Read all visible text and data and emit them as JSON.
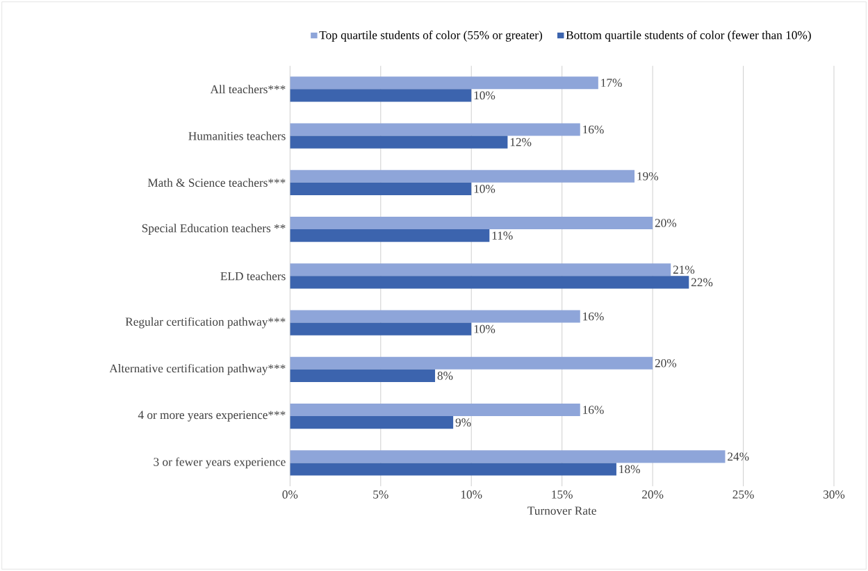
{
  "chart_data": {
    "type": "bar",
    "orientation": "horizontal",
    "categories": [
      "All teachers***",
      "Humanities teachers",
      "Math & Science teachers***",
      "Special Education teachers **",
      "ELD teachers",
      "Regular certification pathway***",
      "Alternative certification pathway***",
      "4 or more years experience***",
      "3 or fewer years experience"
    ],
    "series": [
      {
        "name": "Top quartile students of color (55% or greater)",
        "color": "#8ea5d9",
        "values": [
          17,
          16,
          19,
          20,
          21,
          16,
          20,
          16,
          24
        ],
        "value_labels": [
          "17%",
          "16%",
          "19%",
          "20%",
          "21%",
          "16%",
          "20%",
          "16%",
          "24%"
        ]
      },
      {
        "name": "Bottom quartile students of color (fewer than 10%)",
        "color": "#3c64ae",
        "values": [
          10,
          12,
          10,
          11,
          22,
          10,
          8,
          9,
          18
        ],
        "value_labels": [
          "10%",
          "12%",
          "10%",
          "11%",
          "22%",
          "10%",
          "8%",
          "9%",
          "18%"
        ]
      }
    ],
    "xlabel": "Turnover Rate",
    "xlim": [
      0,
      30
    ],
    "xticks": [
      {
        "value": 0,
        "label": "0%"
      },
      {
        "value": 5,
        "label": "5%"
      },
      {
        "value": 10,
        "label": "10%"
      },
      {
        "value": 15,
        "label": "15%"
      },
      {
        "value": 20,
        "label": "20%"
      },
      {
        "value": 25,
        "label": "25%"
      },
      {
        "value": 30,
        "label": "30%"
      }
    ],
    "grid": "x",
    "legend": "top"
  }
}
